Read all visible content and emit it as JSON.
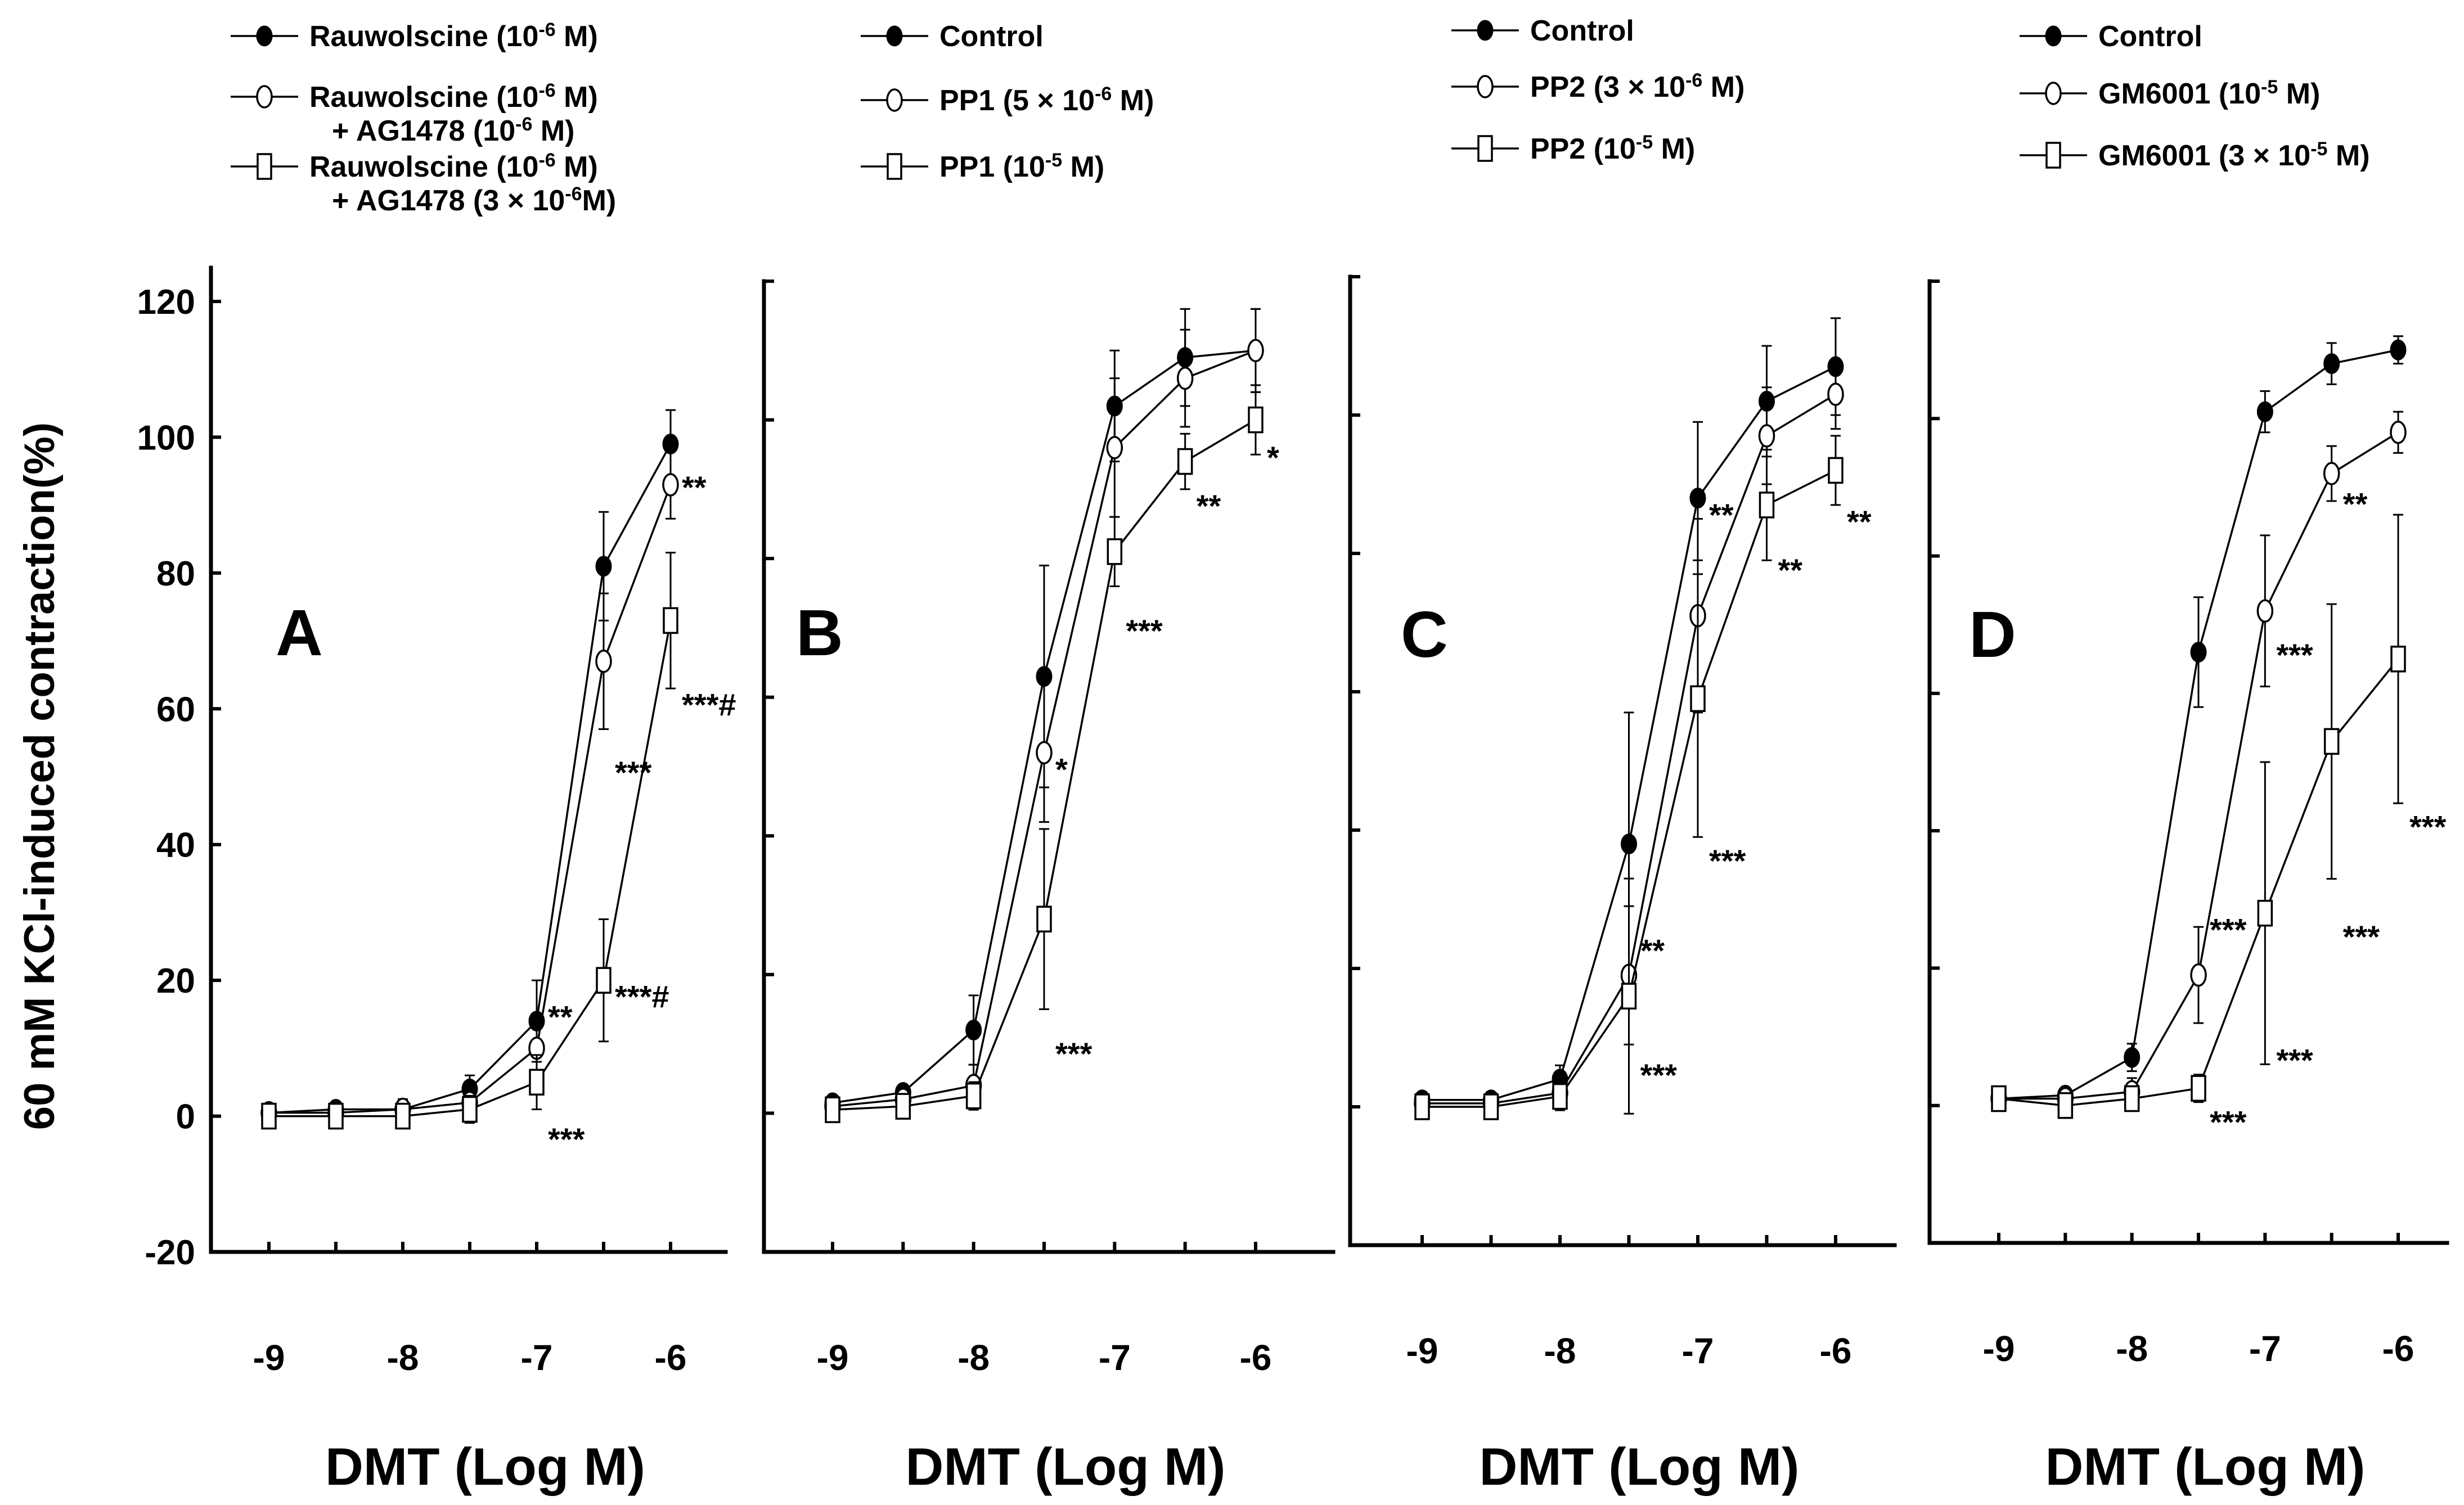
{
  "figure": {
    "y_axis_title": "60 mM KCl-induced contraction(%)",
    "x_axis_title": "DMT (Log M)"
  },
  "chart_data": [
    {
      "type": "line",
      "panel": "A",
      "x": [
        -9,
        -8.5,
        -8,
        -7.5,
        -7,
        -6.5,
        -6
      ],
      "xticks": [
        "-9",
        "-8",
        "-7",
        "-6"
      ],
      "xtick_values": [
        -9,
        -8,
        -7,
        -6
      ],
      "yticks": [
        "120",
        "100",
        "80",
        "60",
        "40",
        "20",
        "0",
        "-20"
      ],
      "ytick_values": [
        120,
        100,
        80,
        60,
        40,
        20,
        0,
        -20
      ],
      "ylim": [
        -20,
        120
      ],
      "xlabel": "DMT (Log M)",
      "ylabel": "60 mM KCl-induced contraction(%)",
      "series": [
        {
          "name": "Rauwolscine (10-6 M)",
          "legend_main": "Rauwolscine (10",
          "legend_exp": "-6",
          "legend_tail": " M)",
          "legend_line2": "",
          "marker": "filled-circle",
          "values": [
            0.5,
            1,
            1,
            4,
            14,
            81,
            99
          ],
          "errors": [
            1,
            1,
            1.5,
            2,
            6,
            8,
            5
          ]
        },
        {
          "name": "Rauwolscine (10-6 M) + AG1478 (10-6 M)",
          "legend_main": "Rauwolscine (10",
          "legend_exp": "-6",
          "legend_tail": " M)",
          "legend_line2": "+ AG1478  (10",
          "legend_line2_exp": "-6",
          "legend_line2_tail": " M)",
          "marker": "open-circle",
          "values": [
            0.5,
            0.5,
            1,
            2,
            10,
            67,
            93
          ],
          "errors": [
            1,
            1,
            1.5,
            2,
            5,
            10,
            5
          ]
        },
        {
          "name": "Rauwolscine (10-6 M) + AG1478 (3 x 10-6 M)",
          "legend_main": "Rauwolscine (10",
          "legend_exp": "-6",
          "legend_tail": " M)",
          "legend_line2": "+ AG1478  (3  × 10",
          "legend_line2_exp": "-6",
          "legend_line2_tail": "M)",
          "marker": "open-square",
          "values": [
            0,
            0,
            0,
            1,
            5,
            20,
            73
          ],
          "errors": [
            1,
            1,
            1.5,
            2,
            4,
            9,
            10
          ]
        }
      ],
      "annotations": [
        {
          "text": "**",
          "x": -6,
          "y": 91
        },
        {
          "text": "***#",
          "x": -6,
          "y": 59
        },
        {
          "text": "***",
          "x": -6.5,
          "y": 49
        },
        {
          "text": "***#",
          "x": -6.5,
          "y": 16
        },
        {
          "text": "**",
          "x": -7,
          "y": 13
        },
        {
          "text": "***",
          "x": -7,
          "y": -5
        }
      ]
    },
    {
      "type": "line",
      "panel": "B",
      "x": [
        -9,
        -8.5,
        -8,
        -7.5,
        -7,
        -6.5,
        -6
      ],
      "xticks": [
        "-9",
        "-8",
        "-7",
        "-6"
      ],
      "xtick_values": [
        -9,
        -8,
        -7,
        -6
      ],
      "ylim": [
        -20,
        120
      ],
      "xlabel": "DMT (Log M)",
      "series": [
        {
          "name": "Control",
          "legend_main": "Control",
          "legend_exp": "",
          "legend_tail": "",
          "marker": "filled-circle",
          "values": [
            1.5,
            3,
            12,
            63,
            102,
            109,
            110
          ],
          "errors": [
            1,
            1,
            5,
            16,
            8,
            7,
            6
          ]
        },
        {
          "name": "PP1 (5 x 10-6 M)",
          "legend_main": "PP1 (5 × 10",
          "legend_exp": "-6",
          "legend_tail": " M)",
          "marker": "open-circle",
          "values": [
            1,
            2,
            4,
            52,
            96,
            106,
            110
          ],
          "errors": [
            1,
            1,
            3,
            10,
            10,
            7,
            6
          ]
        },
        {
          "name": "PP1 (10-5 M)",
          "legend_main": "PP1 (10",
          "legend_exp": "-5",
          "legend_tail": " M)",
          "marker": "open-square",
          "values": [
            0.5,
            1,
            2.5,
            28,
            81,
            94,
            100
          ],
          "errors": [
            1,
            1,
            2,
            13,
            5,
            4,
            5
          ]
        }
      ],
      "annotations": [
        {
          "text": "*",
          "x": -7.5,
          "y": 48
        },
        {
          "text": "***",
          "x": -7.5,
          "y": 7
        },
        {
          "text": "***",
          "x": -7,
          "y": 68
        },
        {
          "text": "**",
          "x": -6.5,
          "y": 86
        },
        {
          "text": "*",
          "x": -6,
          "y": 93
        }
      ]
    },
    {
      "type": "line",
      "panel": "C",
      "x": [
        -9,
        -8.5,
        -8,
        -7.5,
        -7,
        -6.5,
        -6
      ],
      "xticks": [
        "-9",
        "-8",
        "-7",
        "-6"
      ],
      "xtick_values": [
        -9,
        -8,
        -7,
        -6
      ],
      "ylim": [
        -20,
        120
      ],
      "xlabel": "DMT (Log M)",
      "series": [
        {
          "name": "Control",
          "legend_main": "Control",
          "legend_exp": "",
          "legend_tail": "",
          "marker": "filled-circle",
          "values": [
            1,
            1,
            4,
            38,
            88,
            102,
            107
          ],
          "errors": [
            1,
            1,
            2,
            19,
            11,
            8,
            7
          ]
        },
        {
          "name": "PP2 (3 x 10-6 M)",
          "legend_main": "PP2 (3 × 10",
          "legend_exp": "-6",
          "legend_tail": " M)",
          "marker": "open-circle",
          "values": [
            0.5,
            0.5,
            2,
            19,
            71,
            97,
            103
          ],
          "errors": [
            1,
            1,
            2,
            10,
            14,
            7,
            5
          ]
        },
        {
          "name": "PP2 (10-5 M)",
          "legend_main": "PP2 (10",
          "legend_exp": "-5",
          "legend_tail": " M)",
          "marker": "open-square",
          "values": [
            0,
            0,
            1.5,
            16,
            59,
            87,
            92
          ],
          "errors": [
            1,
            1,
            2,
            17,
            20,
            8,
            5
          ]
        }
      ],
      "annotations": [
        {
          "text": "**",
          "x": -7.5,
          "y": 21
        },
        {
          "text": "***",
          "x": -7.5,
          "y": 3
        },
        {
          "text": "**",
          "x": -7,
          "y": 84
        },
        {
          "text": "***",
          "x": -7,
          "y": 34
        },
        {
          "text": "**",
          "x": -6.5,
          "y": 76
        },
        {
          "text": "**",
          "x": -6,
          "y": 83
        }
      ]
    },
    {
      "type": "line",
      "panel": "D",
      "x": [
        -9,
        -8.5,
        -8,
        -7.5,
        -7,
        -6.5,
        -6
      ],
      "xticks": [
        "-9",
        "-8",
        "-7",
        "-6"
      ],
      "xtick_values": [
        -9,
        -8,
        -7,
        -6
      ],
      "ylim": [
        -20,
        120
      ],
      "xlabel": "DMT (Log M)",
      "series": [
        {
          "name": "Control",
          "legend_main": "Control",
          "legend_exp": "",
          "legend_tail": "",
          "marker": "filled-circle",
          "values": [
            1,
            1.5,
            7,
            66,
            101,
            108,
            110
          ],
          "errors": [
            1,
            1,
            2,
            8,
            3,
            3,
            2
          ]
        },
        {
          "name": "GM6001 (10-5 M)",
          "legend_main": "GM6001 (10",
          "legend_exp": "-5",
          "legend_tail": " M)",
          "marker": "open-circle",
          "values": [
            1,
            1,
            2,
            19,
            72,
            92,
            98
          ],
          "errors": [
            1,
            1,
            2,
            7,
            11,
            4,
            3
          ]
        },
        {
          "name": "GM6001 (3 x 10-5 M)",
          "legend_main": "GM6001 (3 × 10",
          "legend_exp": "-5",
          "legend_tail": " M)",
          "marker": "open-square",
          "values": [
            1,
            0,
            1,
            2.5,
            28,
            53,
            65
          ],
          "errors": [
            1,
            1,
            1.5,
            2,
            22,
            20,
            21
          ]
        }
      ],
      "annotations": [
        {
          "text": "***",
          "x": -7.5,
          "y": 24
        },
        {
          "text": "***",
          "x": -7.5,
          "y": -4
        },
        {
          "text": "***",
          "x": -7,
          "y": 64
        },
        {
          "text": "***",
          "x": -7,
          "y": 5
        },
        {
          "text": "**",
          "x": -6.5,
          "y": 86
        },
        {
          "text": "***",
          "x": -6.5,
          "y": 23
        },
        {
          "text": "***",
          "x": -6,
          "y": 39
        }
      ]
    }
  ]
}
